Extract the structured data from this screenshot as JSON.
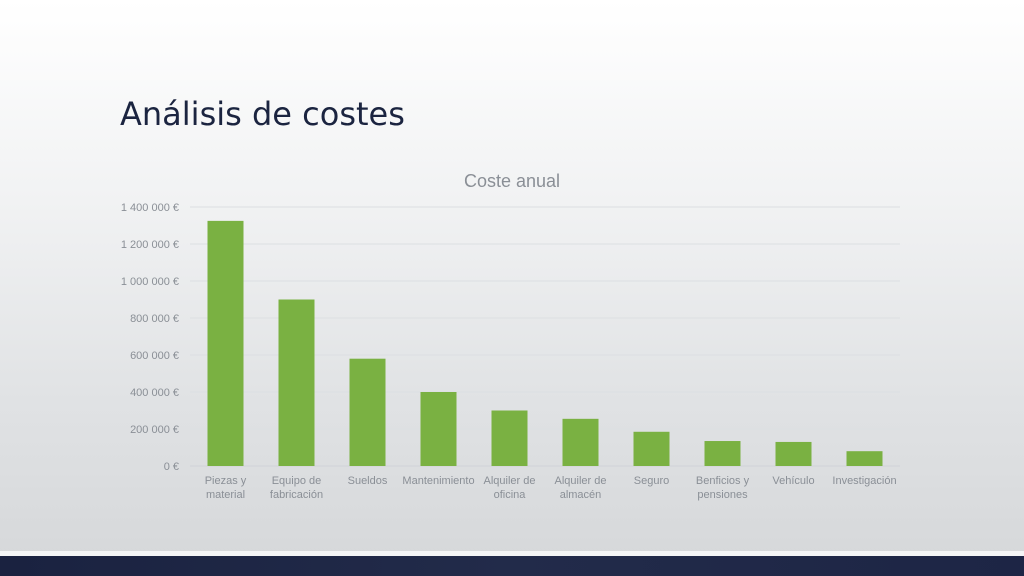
{
  "slide": {
    "title": "Análisis de costes"
  },
  "colors": {
    "bar": "#7ab142",
    "title": "#1b2440",
    "axis_text": "#8a8f96",
    "chart_title": "#8a8f96",
    "gridline": "#dcdfe2",
    "footer": "#1f2745"
  },
  "chart_data": {
    "type": "bar",
    "title": "Coste anual",
    "categories": [
      [
        "Piezas y",
        "material"
      ],
      [
        "Equipo de",
        "fabricación"
      ],
      [
        "Sueldos"
      ],
      [
        "Mantenimiento"
      ],
      [
        "Alquiler de",
        "oficina"
      ],
      [
        "Alquiler de",
        "almacén"
      ],
      [
        "Seguro"
      ],
      [
        "Benficios y",
        "pensiones"
      ],
      [
        "Vehículo"
      ],
      [
        "Investigación"
      ]
    ],
    "values": [
      1325000,
      900000,
      580000,
      400000,
      300000,
      255000,
      185000,
      135000,
      130000,
      80000
    ],
    "ylim": [
      0,
      1400000
    ],
    "yticks": [
      0,
      200000,
      400000,
      600000,
      800000,
      1000000,
      1200000,
      1400000
    ],
    "ytick_labels": [
      "0 €",
      "200 000 €",
      "400 000 €",
      "600 000 €",
      "800 000 €",
      "1 000 000 €",
      "1 200 000 €",
      "1 400 000 €"
    ],
    "grid": true,
    "legend": "none"
  }
}
